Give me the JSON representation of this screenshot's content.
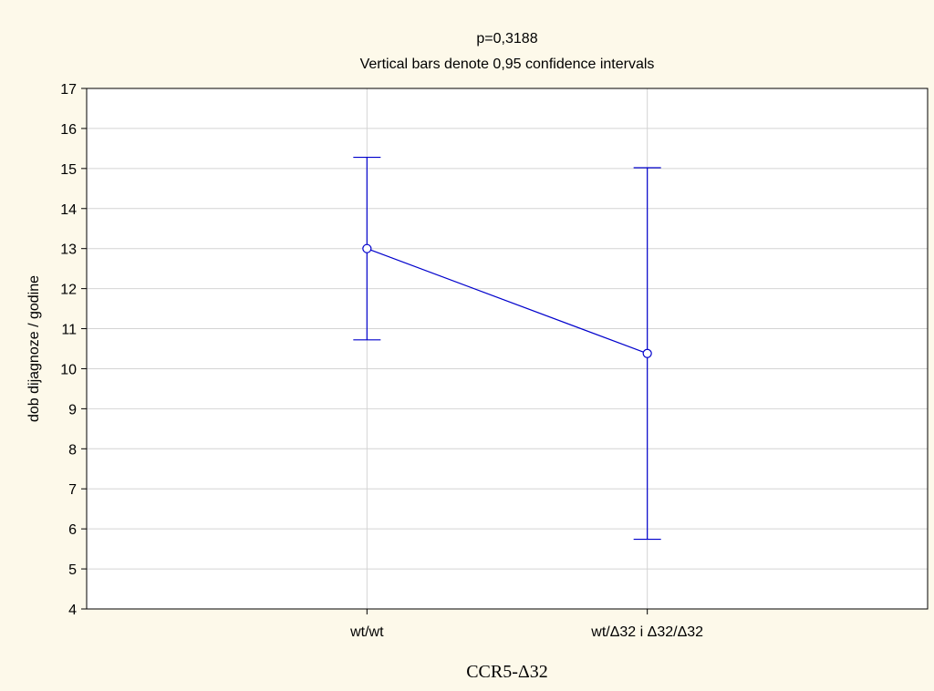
{
  "chart_data": {
    "type": "line",
    "title": "p=0,3188",
    "subtitle": "Vertical bars denote 0,95 confidence intervals",
    "xlabel": "CCR5-Δ32",
    "ylabel": "dob dijagnoze / godine",
    "categories": [
      "wt/wt",
      "wt/Δ32 i Δ32/Δ32"
    ],
    "series": [
      {
        "values": [
          13.0,
          10.38
        ],
        "ci_lower": [
          10.72,
          5.74
        ],
        "ci_upper": [
          15.28,
          15.02
        ]
      }
    ],
    "ylim": [
      4,
      17
    ],
    "yticks": [
      "4",
      "5",
      "6",
      "7",
      "8",
      "9",
      "10",
      "11",
      "12",
      "13",
      "14",
      "15",
      "16",
      "17"
    ],
    "grid": true,
    "colors": {
      "series": "#0000cc",
      "background": "#fdf9ea",
      "plot_background": "#ffffff",
      "grid": "#d4d4d4"
    }
  }
}
